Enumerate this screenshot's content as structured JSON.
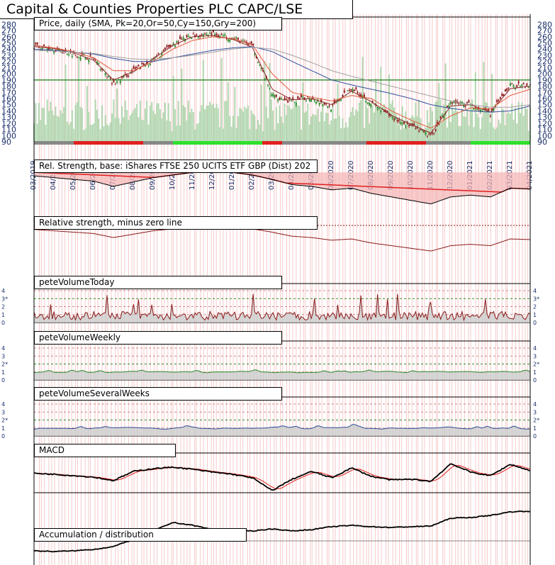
{
  "title": "Capital & Counties Properties PLC CAPC/LSE",
  "colors": {
    "background_stripe": "#f7c9c9",
    "candle_up": "#2e8b2e",
    "candle_down": "#8b1a1a",
    "volume_bar": "#9fcf9f",
    "sma_20": "#8b2a2a",
    "sma_50": "#e05a3a",
    "sma_150": "#2c4e9a",
    "sma_200": "#a0a0a0",
    "support_line": "#2a8a2a",
    "relstrength": "#000000",
    "relstrength_fill": "#f4b4b4",
    "relstrength_ref": "#e02020",
    "pete_today": "#8b1a1a",
    "pete_weekly": "#2a8a2a",
    "pete_several": "#2c4e9a",
    "macd": "#000000",
    "macd_signal": "#e02020",
    "accdist": "#000000",
    "axis_text": "#1a2f6b"
  },
  "panels": {
    "price": "Price, daily (SMA, Pk=20,Or=50,Cy=150,Gry=200)",
    "relstrength": "Rel. Strength, base: iShares FTSE 250 UCITS ETF GBP (Dist) 202",
    "relzero": "Relative strength, minus zero line",
    "pete_today": "peteVolumeToday",
    "pete_weekly": "peteVolumeWeekly",
    "pete_several": "peteVolumeSeveralWeeks",
    "macd": "MACD",
    "accdist": "Accumulation / distribution"
  },
  "chart_data": {
    "type": "line",
    "title": "Capital & Counties Properties PLC CAPC/LSE",
    "price_axis_ticks": [
      "280",
      "270",
      "260",
      "250",
      "240",
      "230",
      "220",
      "210",
      "200",
      "190",
      "180",
      "170",
      "160",
      "150",
      "140",
      "130",
      "120",
      "110",
      "100",
      "90"
    ],
    "pete_axis_ticks": {
      "today": [
        "4",
        "3*",
        "2",
        "1",
        "0"
      ],
      "weekly": [
        "4",
        "3",
        "2*",
        "1",
        "0"
      ],
      "several": [
        "4",
        "3",
        "2*",
        "1",
        "0"
      ]
    },
    "date_labels": [
      "03/2019",
      "04/2019",
      "05/2019",
      "06/2019",
      "07/2019",
      "08/2019",
      "09/2019",
      "10/2019",
      "11/2019",
      "12/2019",
      "01/2020",
      "02/2020",
      "03/2020",
      "04/2020",
      "05/2020",
      "06/2020",
      "07/2020",
      "08/2020",
      "09/2020",
      "10/2020",
      "11/2020",
      "12/2020",
      "01/2021",
      "02/2021",
      "03/2021",
      "04/2021"
    ],
    "ylim": [
      90,
      285
    ],
    "support_level": 190,
    "series": [
      {
        "name": "Price",
        "x": [
          "03/2019",
          "04/2019",
          "05/2019",
          "06/2019",
          "07/2019",
          "08/2019",
          "09/2019",
          "10/2019",
          "11/2019",
          "12/2019",
          "01/2020",
          "02/2020",
          "03/2020",
          "04/2020",
          "05/2020",
          "06/2020",
          "07/2020",
          "08/2020",
          "09/2020",
          "10/2020",
          "11/2020",
          "12/2020",
          "01/2021",
          "02/2021",
          "03/2021",
          "04/2021"
        ],
        "values": [
          245,
          240,
          232,
          225,
          183,
          205,
          222,
          248,
          262,
          265,
          258,
          245,
          165,
          155,
          162,
          145,
          178,
          152,
          130,
          115,
          98,
          155,
          150,
          135,
          182,
          180
        ]
      },
      {
        "name": "SMA 20",
        "values": [
          244,
          241,
          234,
          222,
          190,
          203,
          224,
          246,
          260,
          262,
          256,
          243,
          175,
          158,
          160,
          150,
          172,
          155,
          133,
          118,
          104,
          148,
          150,
          138,
          176,
          180
        ]
      },
      {
        "name": "SMA 50",
        "values": [
          246,
          242,
          236,
          226,
          205,
          205,
          220,
          240,
          254,
          260,
          257,
          247,
          200,
          170,
          162,
          156,
          165,
          160,
          140,
          125,
          112,
          132,
          145,
          143,
          165,
          175
        ]
      },
      {
        "name": "SMA 150",
        "values": [
          240,
          238,
          235,
          232,
          225,
          220,
          220,
          226,
          232,
          238,
          242,
          244,
          236,
          220,
          205,
          190,
          182,
          175,
          168,
          160,
          150,
          144,
          140,
          138,
          140,
          148
        ]
      },
      {
        "name": "SMA 200",
        "values": [
          238,
          237,
          235,
          233,
          228,
          224,
          223,
          226,
          230,
          235,
          240,
          243,
          240,
          230,
          218,
          205,
          196,
          188,
          180,
          172,
          164,
          156,
          150,
          146,
          146,
          150
        ]
      }
    ],
    "relstrength_values": [
      0.62,
      0.6,
      0.58,
      0.56,
      0.5,
      0.55,
      0.6,
      0.63,
      0.66,
      0.67,
      0.66,
      0.63,
      0.58,
      0.52,
      0.5,
      0.46,
      0.48,
      0.42,
      0.38,
      0.34,
      0.3,
      0.38,
      0.4,
      0.38,
      0.48,
      0.47
    ],
    "macd_values": [
      0.2,
      -0.5,
      -1.5,
      -2.5,
      -5.0,
      1.5,
      3.5,
      4.5,
      3.0,
      1.0,
      -0.5,
      -3.0,
      -12.0,
      -4.0,
      1.5,
      -3.0,
      4.0,
      -2.0,
      -4.5,
      -4.0,
      -5.5,
      7.0,
      1.0,
      -1.5,
      6.5,
      2.0
    ],
    "accdist_values": [
      -1.2,
      -1.3,
      -1.2,
      -1.0,
      -0.6,
      0.4,
      1.6,
      2.8,
      2.4,
      1.8,
      1.7,
      1.6,
      1.9,
      1.6,
      1.8,
      2.2,
      2.4,
      2.2,
      2.1,
      2.2,
      2.3,
      3.4,
      3.5,
      3.8,
      4.3,
      4.4
    ]
  }
}
